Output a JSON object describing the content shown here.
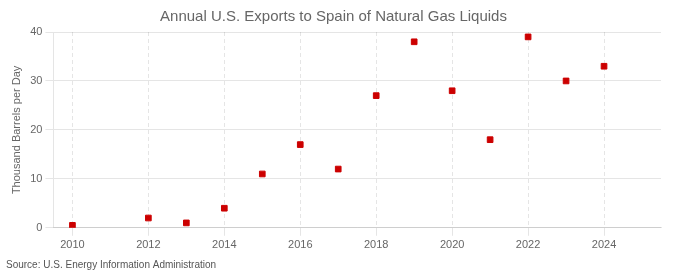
{
  "chart_data": {
    "type": "scatter",
    "title": "Annual U.S. Exports to Spain of Natural Gas Liquids",
    "ylabel": "Thousand Barrels per Day",
    "annotations": [
      "Source: U.S. Energy Information Administration"
    ],
    "x": [
      2010,
      2012,
      2013,
      2014,
      2015,
      2016,
      2017,
      2018,
      2019,
      2020,
      2021,
      2022,
      2023,
      2024
    ],
    "values": [
      0.5,
      2.0,
      1.0,
      4.0,
      11.0,
      17.0,
      12.0,
      27.0,
      38.0,
      28.0,
      18.0,
      39.0,
      30.0,
      33.0
    ],
    "color": "#cc0000",
    "marker": "square",
    "xlim": [
      2009.5,
      2025.5
    ],
    "xticks": [
      2010,
      2012,
      2014,
      2016,
      2018,
      2020,
      2022,
      2024
    ],
    "ylim": [
      0,
      40
    ],
    "yticks": [
      0,
      10,
      20,
      30,
      40
    ],
    "grid": true
  }
}
